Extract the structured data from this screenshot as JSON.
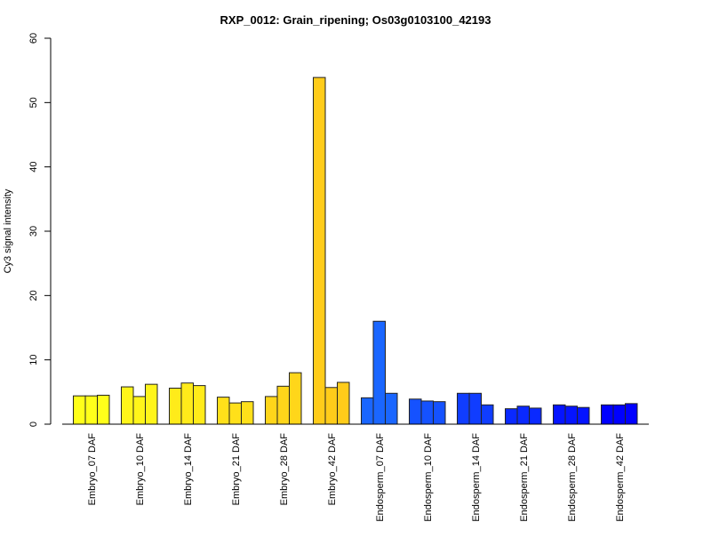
{
  "chart_data": {
    "type": "bar",
    "title": "RXP_0012: Grain_ripening; Os03g0103100_42193",
    "xlabel": "",
    "ylabel": "Cy3 signal intensity",
    "ylim": [
      0,
      60
    ],
    "yticks": [
      0,
      10,
      20,
      30,
      40,
      50,
      60
    ],
    "grid": false,
    "categories": [
      "Embryo_07 DAF",
      "Embryo_10 DAF",
      "Embryo_14 DAF",
      "Embryo_21 DAF",
      "Embryo_28 DAF",
      "Embryo_42 DAF",
      "Endosperm_07 DAF",
      "Endosperm_10 DAF",
      "Endosperm_14 DAF",
      "Endosperm_21 DAF",
      "Endosperm_28 DAF",
      "Endosperm_42 DAF"
    ],
    "replicates": [
      [
        4.4,
        4.4,
        4.5
      ],
      [
        5.8,
        4.3,
        6.2
      ],
      [
        5.6,
        6.4,
        6.0
      ],
      [
        4.2,
        3.3,
        3.5
      ],
      [
        4.3,
        5.9,
        8.0
      ],
      [
        53.9,
        5.7,
        6.5
      ],
      [
        4.1,
        16.0,
        4.8
      ],
      [
        3.9,
        3.6,
        3.5
      ],
      [
        4.8,
        4.8,
        3.0
      ],
      [
        2.4,
        2.8,
        2.5
      ],
      [
        3.0,
        2.8,
        2.6
      ],
      [
        3.0,
        3.0,
        3.2
      ]
    ],
    "colors": [
      "#FFFF1A",
      "#FFF51A",
      "#FFEB1A",
      "#FFE01A",
      "#FFD61A",
      "#FFCC1A",
      "#1A66FF",
      "#1552FF",
      "#103DFF",
      "#0A29FF",
      "#0514FF",
      "#0000FF"
    ]
  }
}
